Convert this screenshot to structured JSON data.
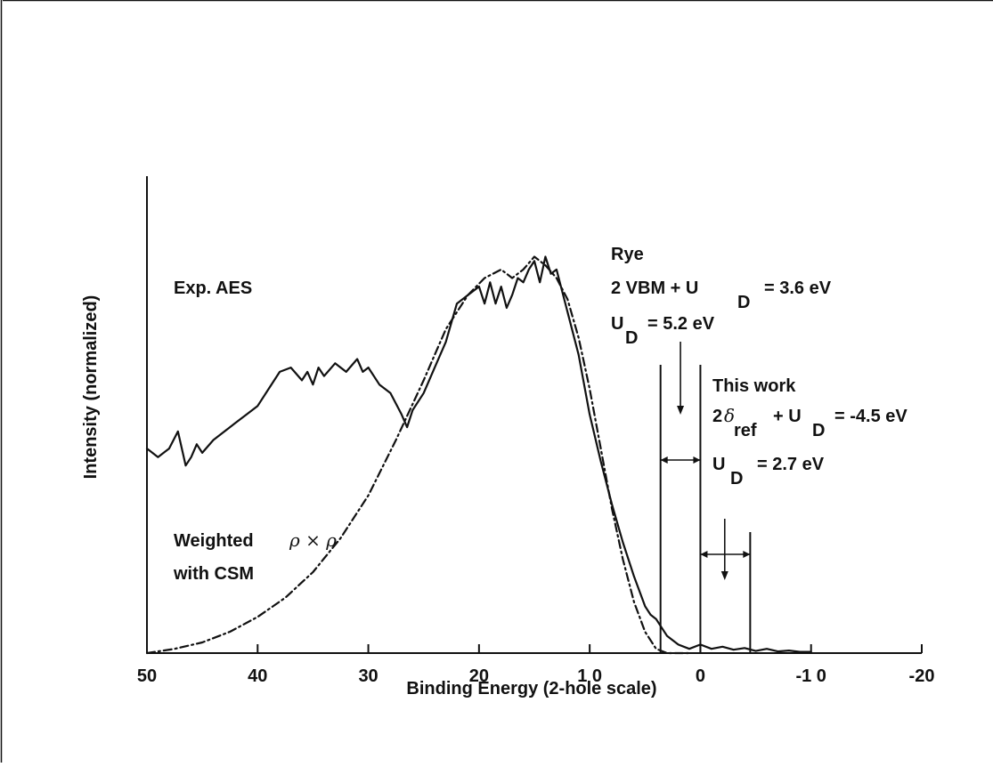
{
  "chart_data": {
    "type": "line",
    "xlabel": "Binding Energy (2-hole scale)",
    "ylabel": "Intensity (normalized)",
    "xlim": [
      50,
      -20
    ],
    "ylim": [
      0,
      1
    ],
    "x_reversed": true,
    "x_ticks": [
      50,
      40,
      30,
      20,
      10,
      0,
      -10,
      -20
    ],
    "x_tick_labels": [
      "50",
      "40",
      "30",
      "20",
      "1 0",
      "0",
      "-1 0",
      "-20"
    ],
    "grid": false,
    "series": [
      {
        "name": "Exp. AES",
        "style": "solid",
        "x": [
          50,
          49,
          48,
          47.2,
          46.5,
          46,
          45.5,
          45,
          44,
          43,
          42,
          41,
          40,
          39,
          38,
          37,
          36,
          35.5,
          35,
          34.5,
          34,
          33,
          32,
          31,
          30.5,
          30,
          29,
          28,
          27,
          26.5,
          26,
          25,
          24,
          23,
          22,
          21,
          20,
          19.5,
          19,
          18.5,
          18,
          17.5,
          17,
          16.5,
          16,
          15.5,
          15,
          14.5,
          14,
          13.5,
          13,
          12.5,
          12,
          11,
          10,
          9,
          8,
          7,
          6,
          5,
          4.5,
          4,
          3.5,
          3,
          2,
          1,
          0,
          -1,
          -2,
          -3,
          -4,
          -5,
          -6,
          -7,
          -8,
          -9,
          -10
        ],
        "y": [
          0.48,
          0.46,
          0.48,
          0.52,
          0.44,
          0.46,
          0.49,
          0.47,
          0.5,
          0.52,
          0.54,
          0.56,
          0.58,
          0.62,
          0.66,
          0.67,
          0.64,
          0.66,
          0.63,
          0.67,
          0.65,
          0.68,
          0.66,
          0.69,
          0.66,
          0.67,
          0.63,
          0.61,
          0.56,
          0.53,
          0.57,
          0.61,
          0.67,
          0.73,
          0.82,
          0.84,
          0.86,
          0.82,
          0.87,
          0.82,
          0.86,
          0.81,
          0.84,
          0.88,
          0.87,
          0.9,
          0.92,
          0.87,
          0.93,
          0.89,
          0.9,
          0.85,
          0.8,
          0.7,
          0.56,
          0.45,
          0.35,
          0.26,
          0.18,
          0.11,
          0.09,
          0.08,
          0.06,
          0.04,
          0.02,
          0.01,
          0.02,
          0.01,
          0.015,
          0.008,
          0.012,
          0.005,
          0.01,
          0.004,
          0.006,
          0.003,
          0.003
        ]
      },
      {
        "name": "Weighted ρ × ρ with CSM",
        "style": "dash-dot",
        "x": [
          50,
          47.5,
          45,
          42.5,
          40,
          37.5,
          35,
          32.5,
          30,
          27.5,
          25,
          23,
          21,
          19.5,
          18,
          17,
          16,
          15,
          14,
          13,
          12,
          11,
          10,
          9,
          8,
          7,
          6,
          5,
          4,
          3,
          2,
          1
        ],
        "y": [
          0.0,
          0.01,
          0.025,
          0.05,
          0.085,
          0.13,
          0.19,
          0.27,
          0.37,
          0.5,
          0.64,
          0.76,
          0.84,
          0.88,
          0.9,
          0.88,
          0.9,
          0.93,
          0.91,
          0.88,
          0.83,
          0.74,
          0.62,
          0.48,
          0.34,
          0.22,
          0.12,
          0.05,
          0.01,
          0.0,
          0.0,
          0.0
        ]
      }
    ],
    "annotations": {
      "exp_label": "Exp. AES",
      "weighted_line1": "Weighted",
      "rho_symbol": "ρ × ρ",
      "weighted_line2": "with CSM",
      "rye_title": "Rye",
      "rye_eq_main": "2 VBM + U",
      "rye_eq_sub": "D",
      "rye_eq_value": "= 3.6 eV",
      "rye_ud_main": "U",
      "rye_ud_sub": "D",
      "rye_ud_value": "= 5.2 eV",
      "tw_title": "This work",
      "tw_eq_prefix": "2",
      "tw_eq_delta": "δ",
      "tw_eq_sub": "ref",
      "tw_eq_plus": "+ U",
      "tw_eq_sub2": "D",
      "tw_eq_value": "= -4.5 eV",
      "tw_ud_main": "U",
      "tw_ud_sub": "D",
      "tw_ud_value": "= 2.7 eV",
      "marker_lines_x": [
        3.6,
        0.0,
        -4.5
      ],
      "rye_gap": [
        3.6,
        0.0
      ],
      "rye_arrow_x": 1.8,
      "tw_gap": [
        0.0,
        -4.5
      ],
      "tw_arrow_x": -2.2
    }
  }
}
